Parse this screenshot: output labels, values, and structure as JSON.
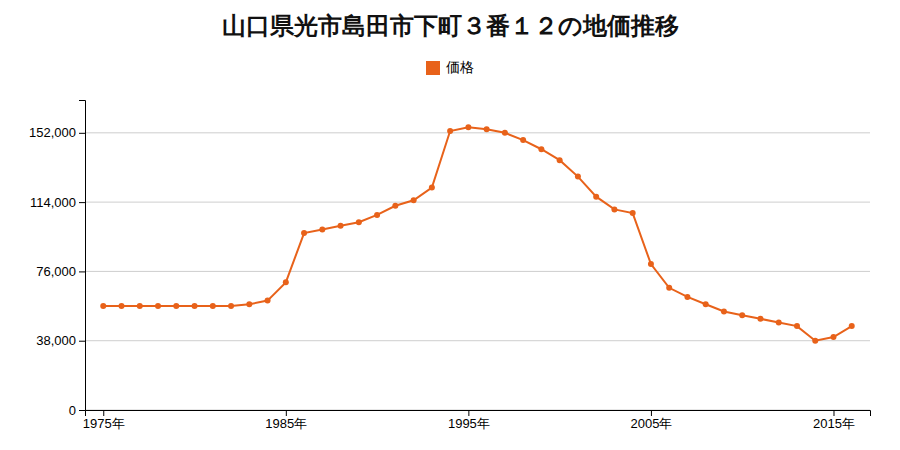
{
  "chart_data": {
    "type": "line",
    "title": "山口県光市島田市下町３番１２の地価推移",
    "legend": "top",
    "grid": true,
    "marker": "circle",
    "x": [
      1975,
      1976,
      1977,
      1978,
      1979,
      1980,
      1981,
      1982,
      1983,
      1984,
      1985,
      1986,
      1987,
      1988,
      1989,
      1990,
      1991,
      1992,
      1993,
      1994,
      1995,
      1996,
      1997,
      1998,
      1999,
      2000,
      2001,
      2002,
      2003,
      2004,
      2005,
      2006,
      2007,
      2008,
      2009,
      2010,
      2011,
      2012,
      2013,
      2014,
      2015,
      2016
    ],
    "series": [
      {
        "name": "価格",
        "color": "#e8621a",
        "values": [
          57000,
          57000,
          57000,
          57000,
          57000,
          57000,
          57000,
          57000,
          58000,
          60000,
          70000,
          97000,
          99000,
          101000,
          103000,
          107000,
          112000,
          115000,
          122000,
          153000,
          155000,
          154000,
          152000,
          148000,
          143000,
          137000,
          128000,
          117000,
          110000,
          108000,
          80000,
          67000,
          62000,
          58000,
          54000,
          52000,
          50000,
          48000,
          46000,
          38000,
          40000,
          46000
        ]
      }
    ],
    "xlim": [
      1974,
      2017
    ],
    "xticks": [
      {
        "value": 1975,
        "label": "1975年"
      },
      {
        "value": 1985,
        "label": "1985年"
      },
      {
        "value": 1995,
        "label": "1995年"
      },
      {
        "value": 2005,
        "label": "2005年"
      },
      {
        "value": 2015,
        "label": "2015年"
      }
    ],
    "ylim": [
      0,
      170000
    ],
    "yticks": [
      0,
      {
        "value": 38000,
        "label": "38,000"
      },
      {
        "value": 76000,
        "label": "76,000"
      },
      {
        "value": 114000,
        "label": "114,000"
      },
      {
        "value": 152000,
        "label": "152,000"
      }
    ]
  }
}
